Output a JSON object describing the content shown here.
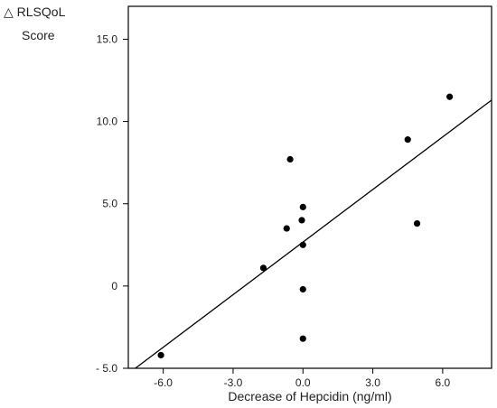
{
  "chart_data": {
    "type": "scatter",
    "ylabel_line1": "△ RLSQoL",
    "ylabel_line2": "Score",
    "xlabel": "Decrease of Hepcidin (ng/ml)",
    "xlim": [
      -7.5,
      8.1
    ],
    "ylim": [
      -5.0,
      17.0
    ],
    "x_ticks": [
      -6.0,
      -3.0,
      0.0,
      3.0,
      6.0
    ],
    "x_tick_labels": [
      "-6.0",
      "-3.0",
      "0.0",
      "3.0",
      "6.0"
    ],
    "y_ticks": [
      -5.0,
      0,
      5.0,
      10.0,
      15.0
    ],
    "y_tick_labels": [
      "- 5.0",
      "0",
      "5.0",
      "10.0",
      "15.0"
    ],
    "points": [
      {
        "x": -6.1,
        "y": -4.2
      },
      {
        "x": -1.7,
        "y": 1.1
      },
      {
        "x": -0.7,
        "y": 3.5
      },
      {
        "x": -0.55,
        "y": 7.7
      },
      {
        "x": -0.05,
        "y": 4.0
      },
      {
        "x": 0.0,
        "y": 4.8
      },
      {
        "x": 0.0,
        "y": 2.5
      },
      {
        "x": 0.0,
        "y": -0.2
      },
      {
        "x": 0.0,
        "y": -3.2
      },
      {
        "x": 4.5,
        "y": 8.9
      },
      {
        "x": 4.9,
        "y": 3.8
      },
      {
        "x": 6.3,
        "y": 11.5
      }
    ],
    "fit_line": {
      "x": [
        -7.2,
        8.1
      ],
      "y": [
        -5.0,
        11.3
      ]
    },
    "grid": false,
    "marker_color": "#000000",
    "line_color": "#000000"
  }
}
